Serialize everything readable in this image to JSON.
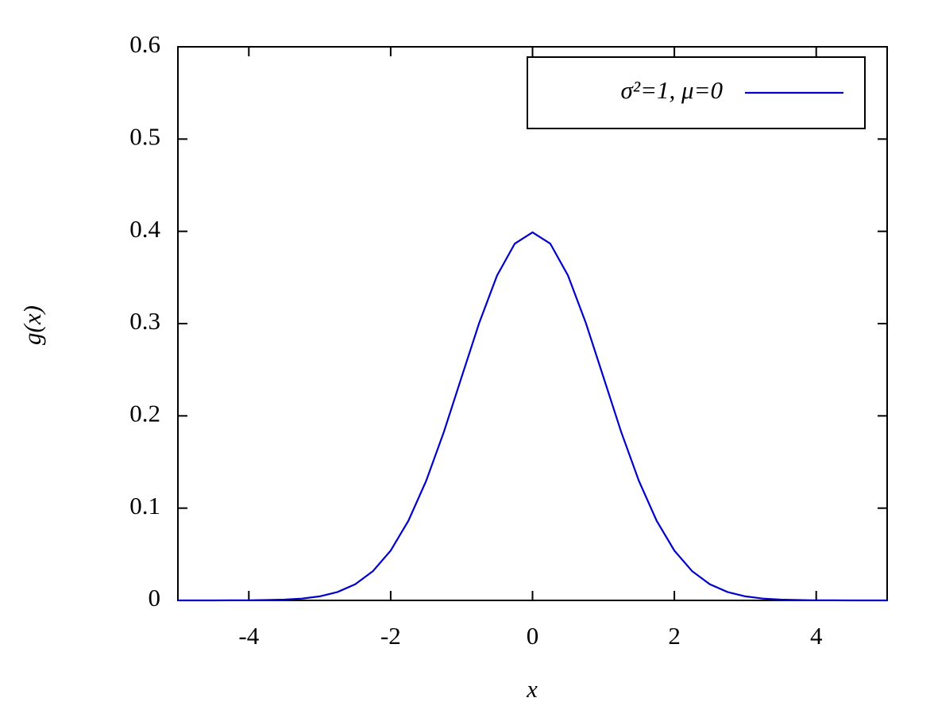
{
  "chart_data": {
    "type": "line",
    "x_label": "x",
    "y_label": "g(x)",
    "x": [
      -5,
      -4.75,
      -4.5,
      -4.25,
      -4,
      -3.75,
      -3.5,
      -3.25,
      -3,
      -2.75,
      -2.5,
      -2.25,
      -2,
      -1.75,
      -1.5,
      -1.25,
      -1,
      -0.75,
      -0.5,
      -0.25,
      0,
      0.25,
      0.5,
      0.75,
      1,
      1.25,
      1.5,
      1.75,
      2,
      2.25,
      2.5,
      2.75,
      3,
      3.25,
      3.5,
      3.75,
      4,
      4.25,
      4.5,
      4.75,
      5
    ],
    "series": [
      {
        "name": "σ²=1, μ=0",
        "color": "#0000cc",
        "values": [
          0,
          0,
          0,
          0.0001,
          0.0001,
          0.0004,
          0.0009,
          0.002,
          0.0044,
          0.0091,
          0.0175,
          0.0317,
          0.054,
          0.0863,
          0.1295,
          0.1826,
          0.242,
          0.3011,
          0.3521,
          0.3867,
          0.3989,
          0.3867,
          0.3521,
          0.3011,
          0.242,
          0.1826,
          0.1295,
          0.0863,
          0.054,
          0.0317,
          0.0175,
          0.0091,
          0.0044,
          0.002,
          0.0009,
          0.0004,
          0.0001,
          0.0001,
          0,
          0,
          0
        ]
      }
    ],
    "xlim": [
      -5,
      5
    ],
    "xticks": [
      -4,
      -2,
      0,
      2,
      4
    ],
    "ylim": [
      0,
      0.6
    ],
    "yticks": [
      0,
      0.1,
      0.2,
      0.3,
      0.4,
      0.5,
      0.6
    ],
    "legend": "upper right"
  }
}
